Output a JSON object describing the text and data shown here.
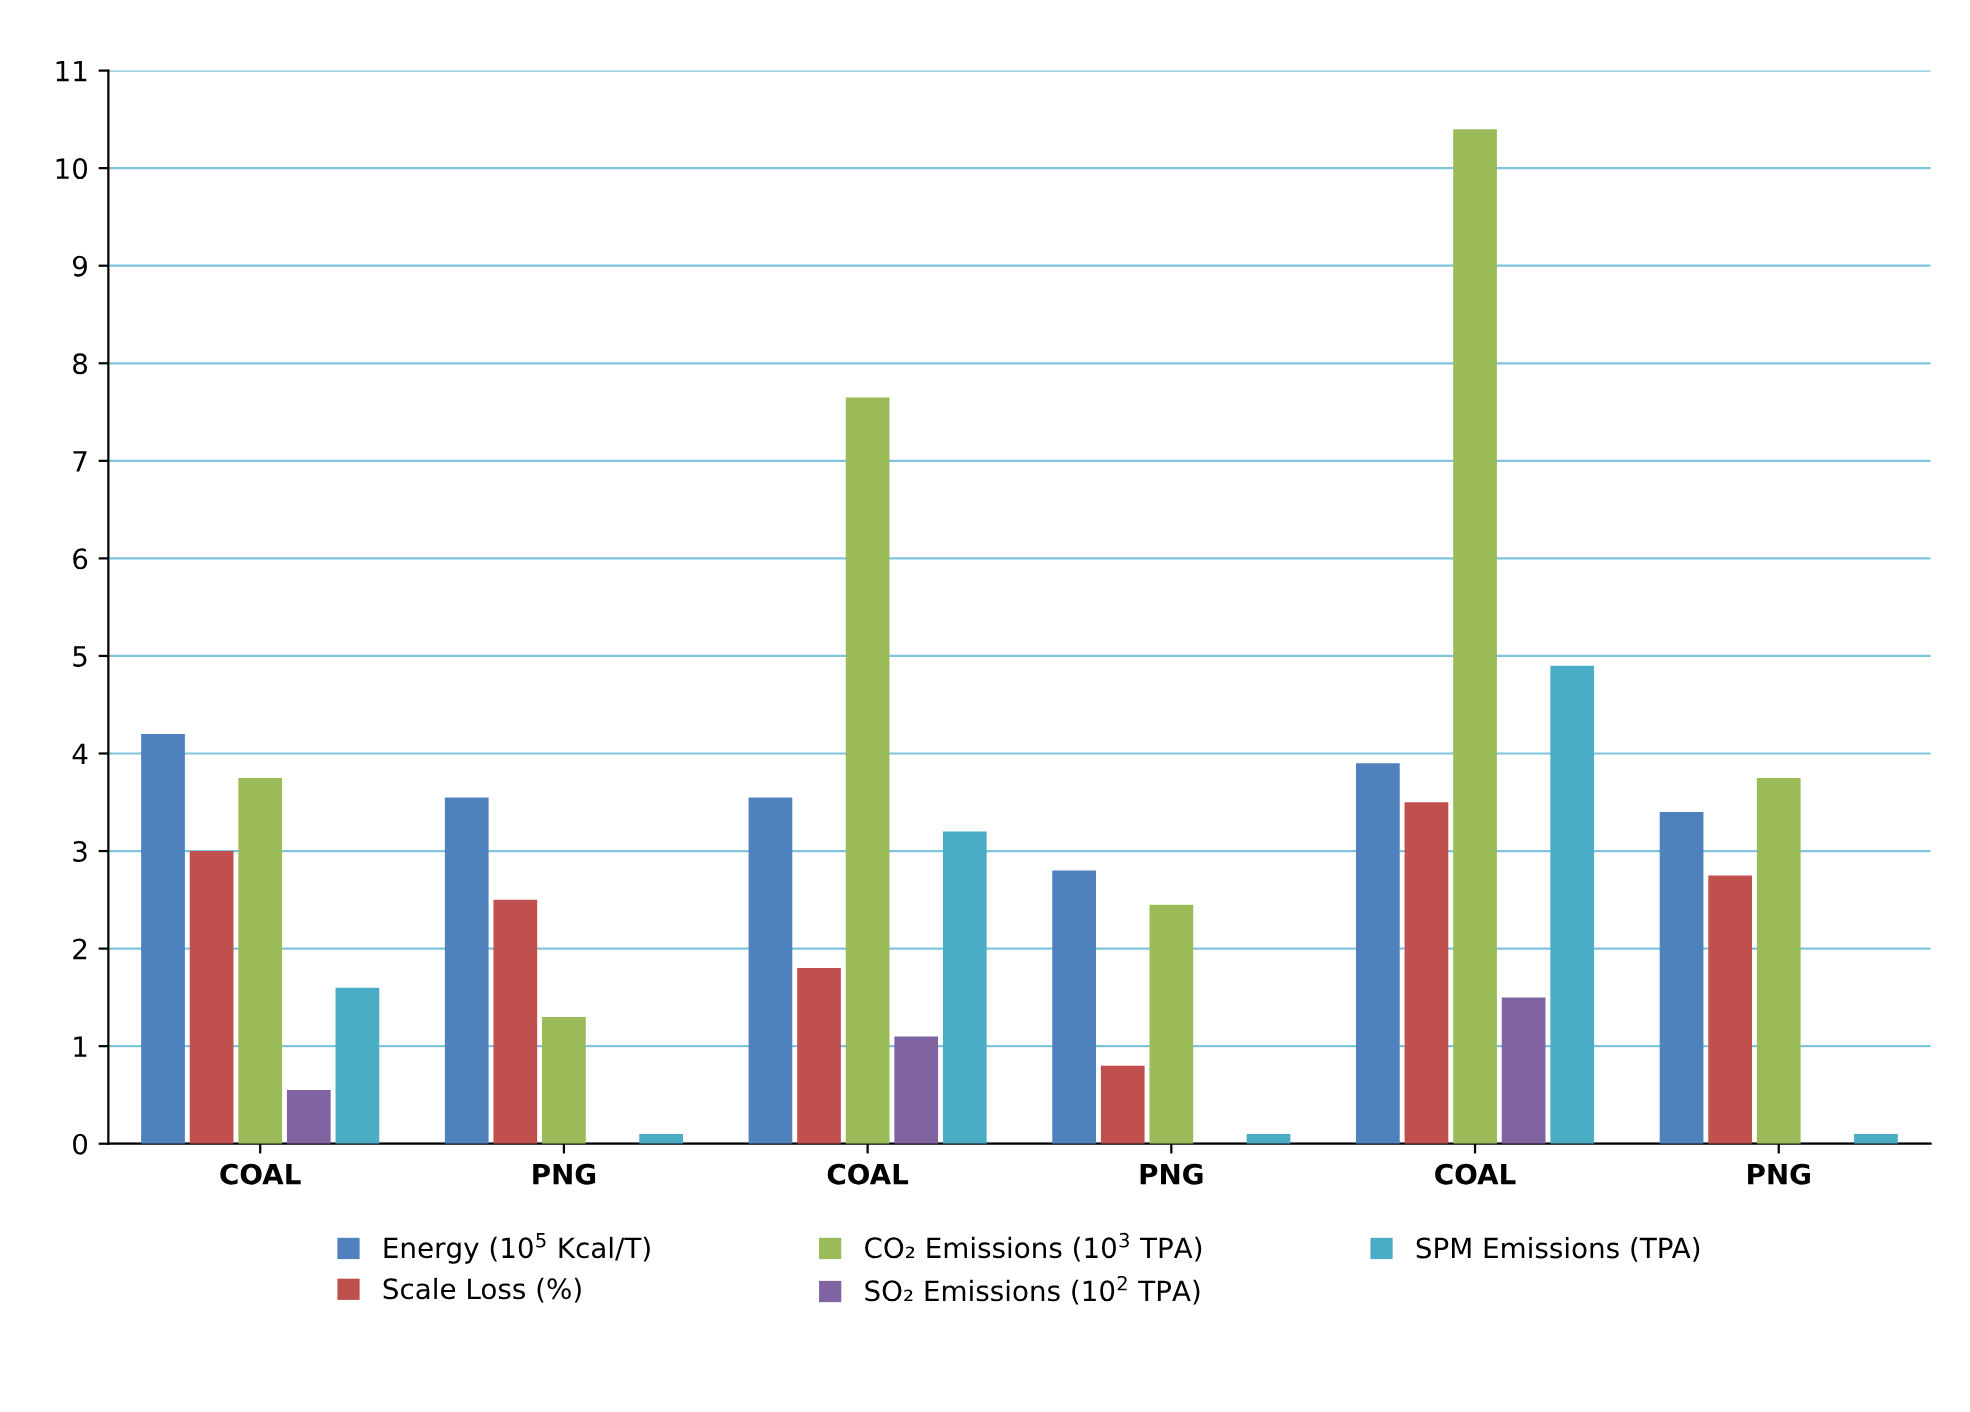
{
  "chart_data": {
    "type": "bar",
    "categories": [
      "COAL",
      "PNG",
      "COAL",
      "PNG",
      "COAL",
      "PNG"
    ],
    "series": [
      {
        "name": "Energy (10$^{5}$ Kcal/T)",
        "color": "#4f81bd",
        "values": [
          4.2,
          3.55,
          3.55,
          2.8,
          3.9,
          3.4
        ]
      },
      {
        "name": "Scale Loss (%)",
        "color": "#c0504d",
        "values": [
          3.0,
          2.5,
          1.8,
          0.8,
          3.5,
          2.75
        ]
      },
      {
        "name": "CO₂ Emissions (10$^{3}$ TPA)",
        "color": "#9bbb59",
        "values": [
          3.75,
          1.3,
          7.65,
          2.45,
          10.4,
          3.75
        ]
      },
      {
        "name": "SO₂ Emissions (10$^{2}$ TPA)",
        "color": "#8064a2",
        "values": [
          0.55,
          null,
          1.1,
          null,
          1.5,
          null
        ]
      },
      {
        "name": "SPM Emissions (TPA)",
        "color": "#4bacc6",
        "values": [
          1.6,
          0.1,
          3.2,
          0.1,
          4.9,
          0.1
        ]
      }
    ],
    "ylim": [
      0,
      11
    ],
    "yticks": [
      0,
      1,
      2,
      3,
      4,
      5,
      6,
      7,
      8,
      9,
      10,
      11
    ],
    "grid": "y",
    "legend": "bottom"
  }
}
